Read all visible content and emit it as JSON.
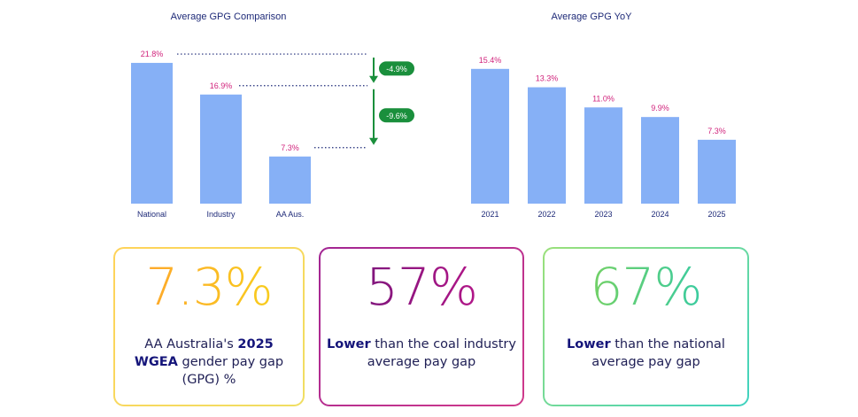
{
  "chart_data": [
    {
      "type": "bar",
      "title": "Average GPG Comparison",
      "categories": [
        "National",
        "Industry",
        "AA Aus."
      ],
      "values": [
        21.8,
        16.9,
        7.3
      ],
      "value_labels": [
        "21.8%",
        "16.9%",
        "7.3%"
      ],
      "ylim": [
        0,
        24
      ],
      "bar_color": "#86b0f6",
      "annotations": [
        "-4.9%",
        "-9.6%"
      ],
      "annotation_color": "#1a8f3c"
    },
    {
      "type": "bar",
      "title": "Average GPG YoY",
      "categories": [
        "2021",
        "2022",
        "2023",
        "2024",
        "2025"
      ],
      "values": [
        15.4,
        13.3,
        11.0,
        9.9,
        7.3
      ],
      "value_labels": [
        "15.4%",
        "13.3%",
        "11.0%",
        "9.9%",
        "7.3%"
      ],
      "ylim": [
        0,
        17
      ],
      "bar_color": "#86b0f6"
    }
  ],
  "cards": [
    {
      "big": "7.3%",
      "gradient": [
        "#ff9f2e",
        "#f7d51a"
      ],
      "border": [
        "#ffd35a",
        "#f0de62"
      ],
      "caption_lines": [
        [
          {
            "t": "AA Australia's ",
            "b": false
          },
          {
            "t": "2025",
            "b": true
          }
        ],
        [
          {
            "t": "WGEA",
            "b": true
          },
          {
            "t": " gender pay gap",
            "b": false
          }
        ],
        [
          {
            "t": "(GPG) %",
            "b": false
          }
        ]
      ]
    },
    {
      "big": "57%",
      "gradient": [
        "#6b1577",
        "#c6178d"
      ],
      "border": [
        "#a22593",
        "#d03a8b"
      ],
      "caption_lines": [
        [
          {
            "t": "Lower",
            "b": true
          },
          {
            "t": " than the coal industry",
            "b": false
          }
        ],
        [
          {
            "t": "average pay gap",
            "b": false
          }
        ]
      ]
    },
    {
      "big": "67%",
      "gradient": [
        "#8bd34d",
        "#23c9b8"
      ],
      "border": [
        "#9be07a",
        "#3fd2c0"
      ],
      "caption_lines": [
        [
          {
            "t": "Lower",
            "b": true
          },
          {
            "t": " than the national",
            "b": false
          }
        ],
        [
          {
            "t": "average pay gap",
            "b": false
          }
        ]
      ]
    }
  ],
  "colors": {
    "value_label": "#d1237c",
    "category_label": "#1e2a78",
    "connector": "#1e2a78",
    "annotation": "#1a8f3c"
  }
}
